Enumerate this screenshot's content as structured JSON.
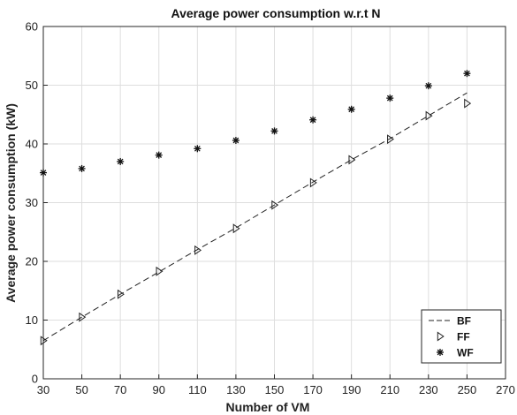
{
  "chart_data": {
    "type": "line",
    "title": "Average power consumption w.r.t N",
    "xlabel": "Number of VM",
    "ylabel": "Average power consumption (kW)",
    "xlim": [
      30,
      270
    ],
    "ylim": [
      0,
      60
    ],
    "xticks": [
      30,
      50,
      70,
      90,
      110,
      130,
      150,
      170,
      190,
      210,
      230,
      250,
      270
    ],
    "yticks": [
      0,
      10,
      20,
      30,
      40,
      50,
      60
    ],
    "grid": true,
    "legend_position": "bottom-right",
    "x": [
      30,
      50,
      70,
      90,
      110,
      130,
      150,
      170,
      190,
      210,
      230,
      250
    ],
    "series": [
      {
        "name": "BF",
        "style": "dashed-line",
        "color": "#222222",
        "values": [
          6.5,
          10.5,
          14.4,
          18.2,
          22.0,
          25.7,
          29.6,
          33.5,
          37.3,
          40.9,
          44.8,
          48.7
        ]
      },
      {
        "name": "FF",
        "style": "right-triangle-marker",
        "color": "#222222",
        "values": [
          6.5,
          10.5,
          14.4,
          18.3,
          21.9,
          25.6,
          29.6,
          33.4,
          37.3,
          40.8,
          44.8,
          46.9
        ]
      },
      {
        "name": "WF",
        "style": "asterisk-marker",
        "color": "#111111",
        "values": [
          35.1,
          35.8,
          37.0,
          38.1,
          39.2,
          40.6,
          42.2,
          44.1,
          45.9,
          47.8,
          49.9,
          52.0
        ]
      }
    ]
  }
}
